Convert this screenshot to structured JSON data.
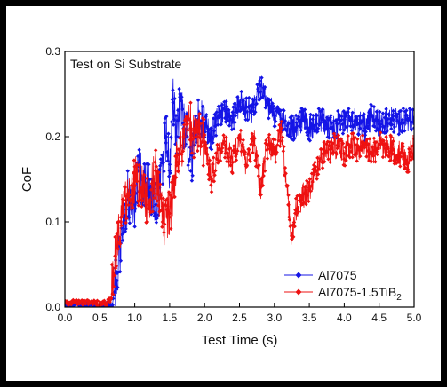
{
  "chart_data": {
    "type": "line",
    "annotation": "Test on Si Substrate",
    "xlabel": "Test Time (s)",
    "ylabel": "CoF",
    "xlim": [
      0,
      5
    ],
    "ylim": [
      0,
      0.3
    ],
    "xticks": [
      "0.0",
      "0.5",
      "1.0",
      "1.5",
      "2.0",
      "2.5",
      "3.0",
      "3.5",
      "4.0",
      "4.5",
      "5.0"
    ],
    "yticks": [
      "0.0",
      "0.1",
      "0.2",
      "0.3"
    ],
    "legend_position": "bottom-right",
    "legend": {
      "entry0_label": "Al7075",
      "entry1_main": "Al7075-1.5TiB",
      "entry1_sub": "2"
    },
    "series": [
      {
        "name": "Al7075",
        "color": "#1414e6",
        "marker": "diamond",
        "x": [
          0.0,
          0.2,
          0.4,
          0.6,
          0.68,
          0.75,
          0.8,
          0.85,
          0.9,
          1.0,
          1.05,
          1.1,
          1.2,
          1.3,
          1.35,
          1.4,
          1.45,
          1.5,
          1.55,
          1.6,
          1.65,
          1.7,
          1.75,
          1.8,
          1.85,
          1.9,
          2.0,
          2.1,
          2.2,
          2.3,
          2.4,
          2.5,
          2.6,
          2.7,
          2.8,
          2.9,
          3.0,
          3.1,
          3.2,
          3.3,
          3.4,
          3.5,
          3.6,
          3.7,
          3.8,
          3.9,
          4.0,
          4.1,
          4.2,
          4.3,
          4.4,
          4.5,
          4.6,
          4.7,
          4.8,
          4.9,
          5.0
        ],
        "y": [
          0.002,
          0.002,
          0.002,
          0.002,
          0.003,
          0.04,
          0.075,
          0.1,
          0.13,
          0.12,
          0.16,
          0.15,
          0.14,
          0.12,
          0.14,
          0.17,
          0.2,
          0.16,
          0.24,
          0.2,
          0.25,
          0.21,
          0.2,
          0.16,
          0.19,
          0.22,
          0.215,
          0.2,
          0.225,
          0.23,
          0.22,
          0.24,
          0.235,
          0.23,
          0.26,
          0.24,
          0.225,
          0.22,
          0.215,
          0.21,
          0.22,
          0.21,
          0.215,
          0.22,
          0.21,
          0.215,
          0.22,
          0.22,
          0.215,
          0.21,
          0.225,
          0.215,
          0.22,
          0.22,
          0.215,
          0.22,
          0.22
        ]
      },
      {
        "name": "Al7075-1.5TiB2",
        "color": "#ee1111",
        "marker": "diamond",
        "x": [
          0.0,
          0.2,
          0.4,
          0.6,
          0.66,
          0.72,
          0.8,
          0.9,
          1.0,
          1.1,
          1.2,
          1.3,
          1.4,
          1.5,
          1.6,
          1.7,
          1.8,
          1.9,
          2.0,
          2.1,
          2.2,
          2.3,
          2.4,
          2.5,
          2.6,
          2.7,
          2.8,
          2.9,
          3.0,
          3.1,
          3.2,
          3.25,
          3.3,
          3.4,
          3.5,
          3.6,
          3.7,
          3.8,
          3.9,
          4.0,
          4.1,
          4.2,
          4.3,
          4.4,
          4.5,
          4.6,
          4.7,
          4.8,
          4.9,
          5.0
        ],
        "y": [
          0.005,
          0.006,
          0.005,
          0.005,
          0.01,
          0.06,
          0.1,
          0.13,
          0.15,
          0.14,
          0.12,
          0.16,
          0.1,
          0.11,
          0.17,
          0.2,
          0.21,
          0.2,
          0.19,
          0.15,
          0.185,
          0.19,
          0.17,
          0.2,
          0.165,
          0.2,
          0.14,
          0.19,
          0.18,
          0.21,
          0.12,
          0.08,
          0.11,
          0.13,
          0.14,
          0.16,
          0.18,
          0.185,
          0.19,
          0.18,
          0.19,
          0.185,
          0.19,
          0.18,
          0.19,
          0.19,
          0.185,
          0.18,
          0.17,
          0.19
        ]
      }
    ]
  }
}
